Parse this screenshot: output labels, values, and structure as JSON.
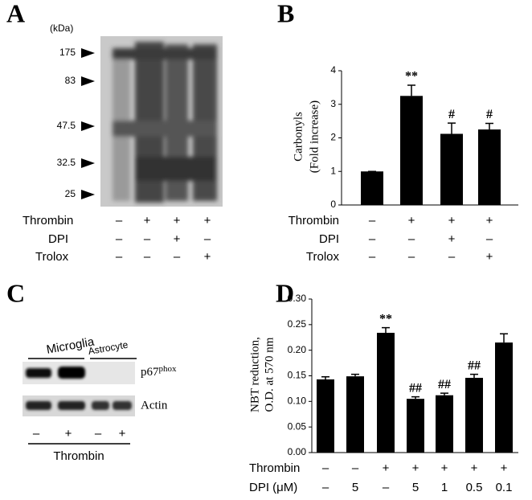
{
  "panel_a": {
    "letter": "A",
    "unit": "(kDa)",
    "markers": [
      "175",
      "83",
      "47.5",
      "32.5",
      "25"
    ],
    "treatments": [
      {
        "label": "Thrombin",
        "values": [
          "–",
          "+",
          "+",
          "+"
        ]
      },
      {
        "label": "DPI",
        "values": [
          "–",
          "–",
          "+",
          "–"
        ]
      },
      {
        "label": "Trolox",
        "values": [
          "–",
          "–",
          "–",
          "+"
        ]
      }
    ]
  },
  "panel_c": {
    "letter": "C",
    "groups": [
      "Microglia",
      "Astrocyte"
    ],
    "bands": [
      {
        "label": "p67",
        "sup": "phox"
      },
      {
        "label": "Actin"
      }
    ],
    "lanes": [
      "–",
      "+",
      "–",
      "+"
    ],
    "treatment": "Thrombin"
  },
  "chart_data": [
    {
      "type": "bar",
      "letter": "B",
      "y_label": [
        "Carbonyls",
        "(Fold increase)"
      ],
      "color": "#000000",
      "values": [
        1,
        3.25,
        2.12,
        2.25
      ],
      "errors": [
        0,
        0.32,
        0.32,
        0.18
      ],
      "annotations": [
        null,
        "**",
        "#",
        "#"
      ],
      "ylim": [
        0,
        4
      ],
      "yticks": [
        0,
        1,
        2,
        3,
        4
      ],
      "treatments": [
        {
          "label": "Thrombin",
          "values": [
            "–",
            "+",
            "+",
            "+"
          ]
        },
        {
          "label": "DPI",
          "values": [
            "–",
            "–",
            "+",
            "–"
          ]
        },
        {
          "label": "Trolox",
          "values": [
            "–",
            "–",
            "–",
            "+"
          ]
        }
      ]
    },
    {
      "type": "bar",
      "letter": "D",
      "y_label": [
        "NBT reduction,",
        "O.D. at 570 nm"
      ],
      "color": "#000000",
      "values": [
        0.143,
        0.149,
        0.234,
        0.105,
        0.112,
        0.146,
        0.215
      ],
      "errors": [
        0.005,
        0.004,
        0.01,
        0.004,
        0.004,
        0.007,
        0.017
      ],
      "annotations": [
        null,
        null,
        "**",
        "##",
        "##",
        "##",
        null
      ],
      "ylim": [
        0,
        0.3
      ],
      "yticks": [
        {
          "value": 0,
          "label": "0.00"
        },
        {
          "value": 0.05,
          "label": "0.05"
        },
        {
          "value": 0.1,
          "label": "0.10"
        },
        {
          "value": 0.15,
          "label": "0.15"
        },
        {
          "value": 0.2,
          "label": "0.20"
        },
        {
          "value": 0.25,
          "label": "0.25"
        },
        {
          "value": 0.3,
          "label": "0.30"
        }
      ],
      "treatments": [
        {
          "label": "Thrombin",
          "values": [
            "–",
            "–",
            "+",
            "+",
            "+",
            "+",
            "+"
          ]
        },
        {
          "label": "DPI (μM)",
          "values": [
            "–",
            "5",
            "–",
            "5",
            "1",
            "0.5",
            "0.1"
          ]
        }
      ]
    }
  ]
}
